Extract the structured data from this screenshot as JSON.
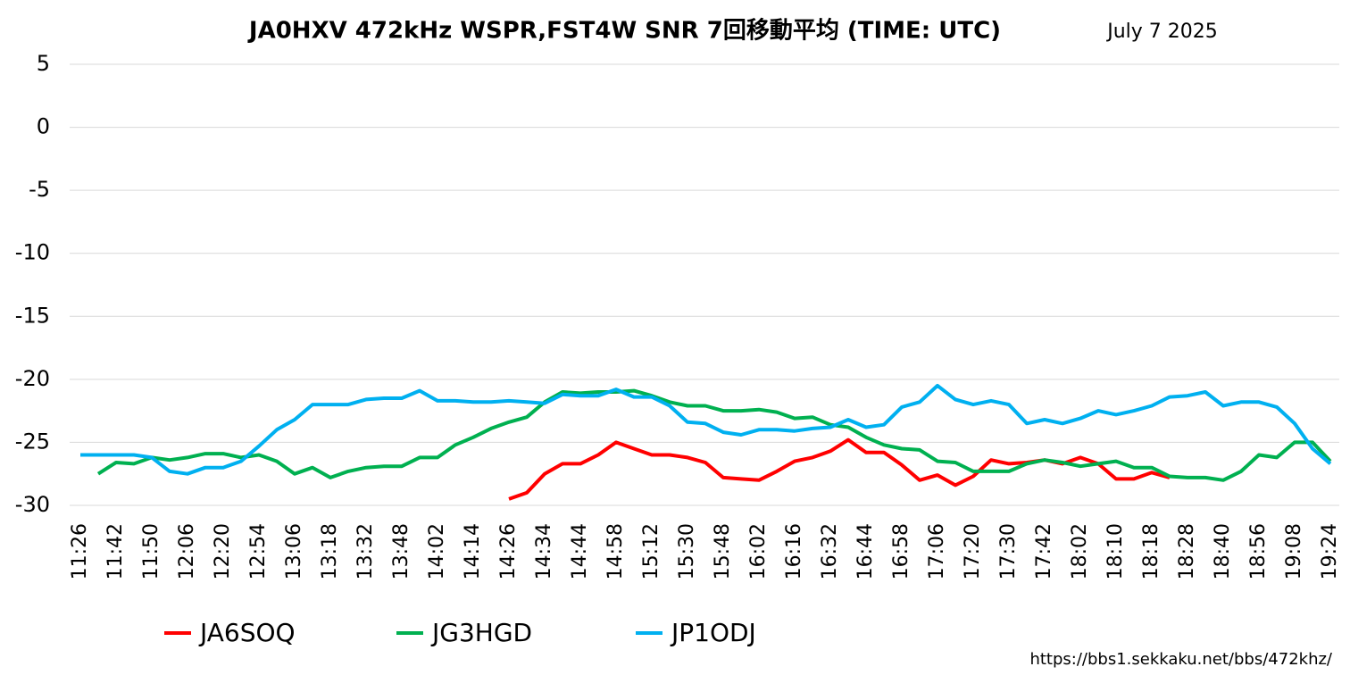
{
  "chart_data": {
    "type": "line",
    "title": "JA0HXV 472kHz WSPR,FST4W SNR 7回移動平均 (TIME: UTC)",
    "date": "July 7 2025",
    "source": "https://bbs1.sekkaku.net/bbs/472khz/",
    "categories": [
      "11:26",
      null,
      "11:42",
      null,
      "11:50",
      null,
      "12:06",
      null,
      "12:20",
      null,
      "12:54",
      null,
      "13:06",
      null,
      "13:18",
      null,
      "13:32",
      null,
      "13:48",
      null,
      "14:02",
      null,
      "14:14",
      null,
      "14:26",
      null,
      "14:34",
      null,
      "14:44",
      null,
      "14:58",
      null,
      "15:12",
      null,
      "15:30",
      null,
      "15:48",
      null,
      "16:02",
      null,
      "16:16",
      null,
      "16:32",
      null,
      "16:44",
      null,
      "16:58",
      null,
      "17:06",
      null,
      "17:20",
      null,
      "17:30",
      null,
      "17:42",
      null,
      "18:02",
      null,
      "18:10",
      null,
      "18:18",
      null,
      "18:28",
      null,
      "18:40",
      null,
      "18:56",
      null,
      "19:08",
      null,
      "19:24"
    ],
    "ylim": [
      -30,
      5
    ],
    "yticks": [
      5,
      0,
      -5,
      -10,
      -15,
      -20,
      -25,
      -30
    ],
    "grid": true,
    "series": [
      {
        "name": "JA6SOQ",
        "color": "#ff0000",
        "values": [
          null,
          null,
          null,
          null,
          null,
          null,
          null,
          null,
          null,
          null,
          null,
          null,
          null,
          null,
          null,
          null,
          null,
          null,
          null,
          null,
          null,
          null,
          null,
          null,
          -29.5,
          -29,
          -27.5,
          -26.7,
          -26.7,
          -26,
          -25,
          -25.5,
          -26,
          -26,
          -26.2,
          -26.6,
          -27.8,
          -27.9,
          -28,
          -27.3,
          -26.5,
          -26.2,
          -25.7,
          -24.8,
          -25.8,
          -25.8,
          -26.8,
          -28,
          -27.6,
          -28.4,
          -27.7,
          -26.4,
          -26.7,
          -26.6,
          -26.4,
          -26.7,
          -26.2,
          -26.7,
          -27.9,
          -27.9,
          -27.4,
          -27.8,
          null,
          null,
          null,
          null,
          null,
          null,
          null,
          null,
          null
        ]
      },
      {
        "name": "JG3HGD",
        "color": "#00b050",
        "values": [
          null,
          -27.5,
          -26.6,
          -26.7,
          -26.2,
          -26.4,
          -26.2,
          -25.9,
          -25.9,
          -26.2,
          -26,
          -26.5,
          -27.5,
          -27,
          -27.8,
          -27.3,
          -27,
          -26.9,
          -26.9,
          -26.2,
          -26.2,
          -25.2,
          -24.6,
          -23.9,
          -23.4,
          -23,
          -21.8,
          -21,
          -21.1,
          -21,
          -21,
          -20.9,
          -21.3,
          -21.8,
          -22.1,
          -22.1,
          -22.5,
          -22.5,
          -22.4,
          -22.6,
          -23.1,
          -23,
          -23.6,
          -23.8,
          -24.6,
          -25.2,
          -25.5,
          -25.6,
          -26.5,
          -26.6,
          -27.3,
          -27.3,
          -27.3,
          -26.7,
          -26.4,
          -26.6,
          -26.9,
          -26.7,
          -26.5,
          -27,
          -27,
          -27.7,
          -27.8,
          -27.8,
          -28,
          -27.3,
          -26,
          -26.2,
          -25,
          -25,
          -26.5
        ]
      },
      {
        "name": "JP1ODJ",
        "color": "#00b0f0",
        "values": [
          -26,
          -26,
          -26,
          -26,
          -26.2,
          -27.3,
          -27.5,
          -27,
          -27,
          -26.5,
          -25.3,
          -24,
          -23.2,
          -22,
          -22,
          -22,
          -21.6,
          -21.5,
          -21.5,
          -20.9,
          -21.7,
          -21.7,
          -21.8,
          -21.8,
          -21.7,
          -21.8,
          -21.9,
          -21.2,
          -21.3,
          -21.3,
          -20.8,
          -21.4,
          -21.4,
          -22.1,
          -23.4,
          -23.5,
          -24.2,
          -24.4,
          -24,
          -24,
          -24.1,
          -23.9,
          -23.8,
          -23.2,
          -23.8,
          -23.6,
          -22.2,
          -21.8,
          -20.5,
          -21.6,
          -22,
          -21.7,
          -22,
          -23.5,
          -23.2,
          -23.5,
          -23.1,
          -22.5,
          -22.8,
          -22.5,
          -22.1,
          -21.4,
          -21.3,
          -21,
          -22.1,
          -21.8,
          -21.8,
          -22.2,
          -23.5,
          -25.5,
          -26.7
        ]
      }
    ]
  }
}
